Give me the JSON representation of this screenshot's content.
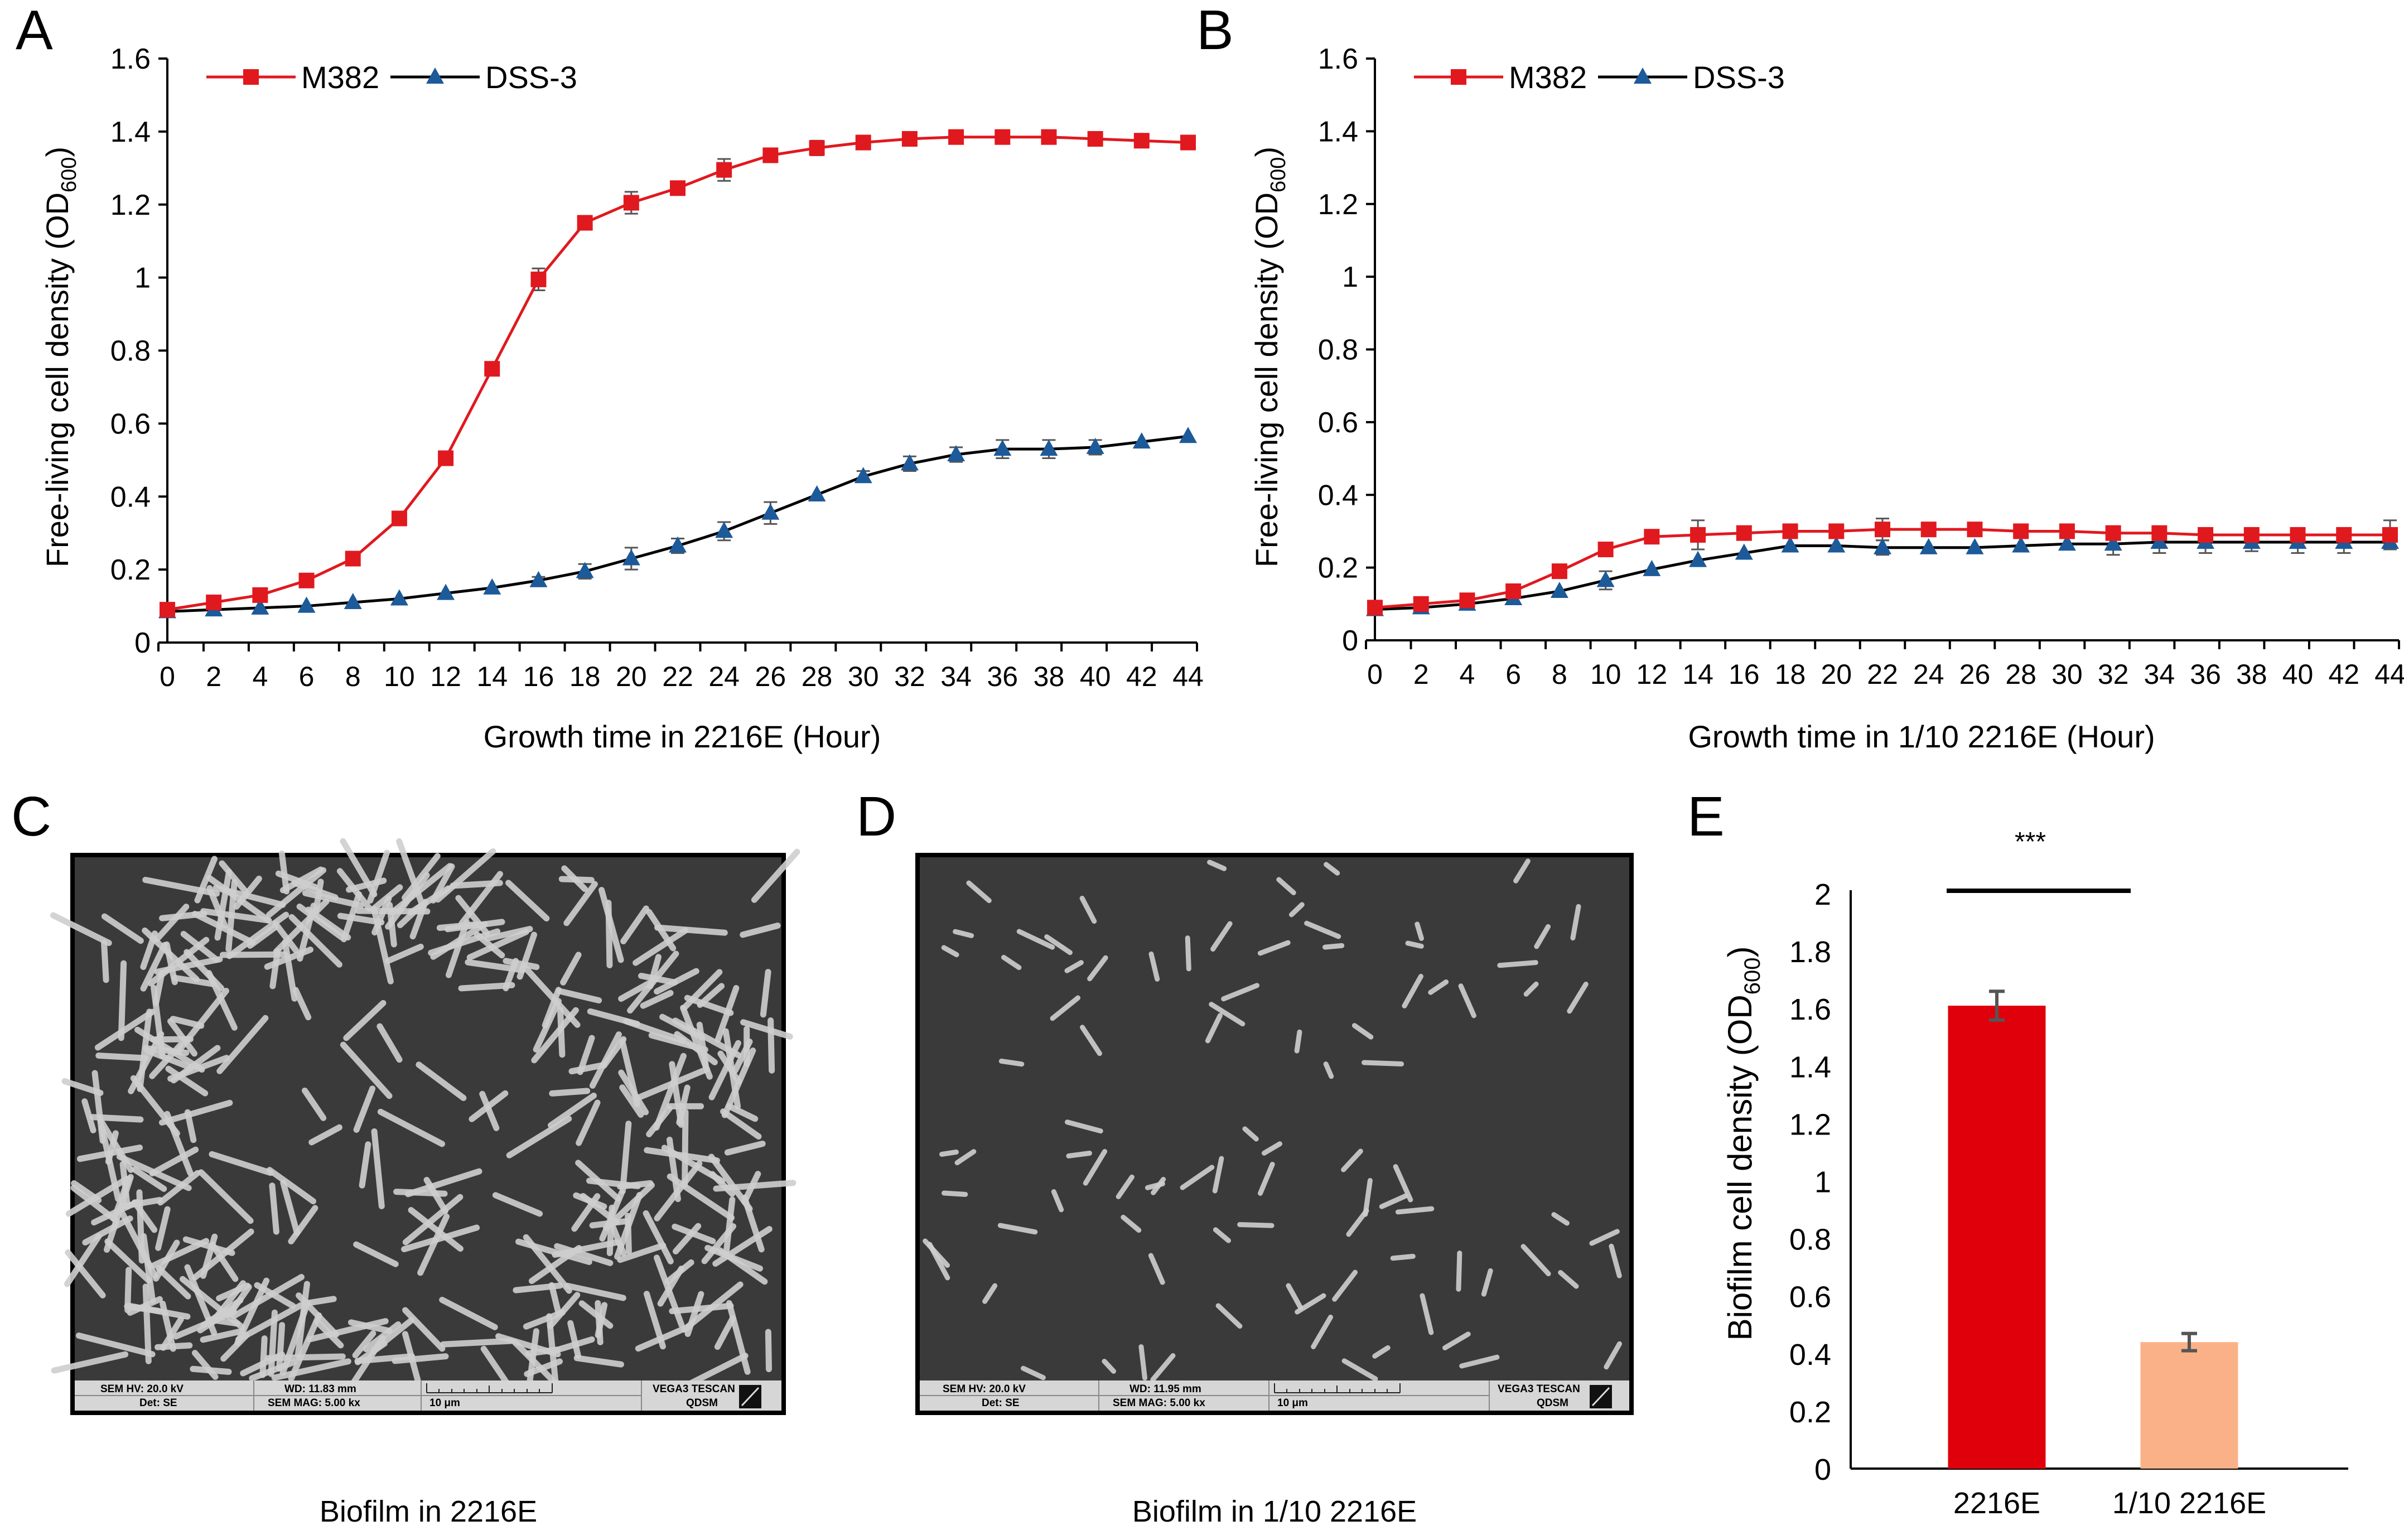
{
  "chart_data": [
    {
      "panel": "A",
      "type": "line",
      "title": "",
      "xlabel": "Growth time in 2216E (Hour)",
      "ylabel_main": "Free-living cell density (OD",
      "ylabel_sub": "600",
      "ylabel_close": ")",
      "xlim": [
        0,
        44
      ],
      "ylim": [
        0,
        1.6
      ],
      "x_ticks": [
        "0",
        "2",
        "4",
        "6",
        "8",
        "10",
        "12",
        "14",
        "16",
        "18",
        "20",
        "22",
        "24",
        "26",
        "28",
        "30",
        "32",
        "34",
        "36",
        "38",
        "40",
        "42",
        "44"
      ],
      "y_ticks": [
        "0",
        "0.2",
        "0.4",
        "0.6",
        "0.8",
        "1",
        "1.2",
        "1.4",
        "1.6"
      ],
      "legend_position": "top-left",
      "x": [
        0,
        2,
        4,
        6,
        8,
        10,
        12,
        14,
        16,
        18,
        20,
        22,
        24,
        26,
        28,
        30,
        32,
        34,
        36,
        38,
        40,
        42,
        44
      ],
      "series": [
        {
          "name": "M382",
          "color": "#e0191f",
          "marker": "square",
          "values": [
            0.09,
            0.11,
            0.13,
            0.17,
            0.23,
            0.34,
            0.505,
            0.75,
            0.995,
            1.15,
            1.205,
            1.245,
            1.295,
            1.335,
            1.355,
            1.37,
            1.38,
            1.385,
            1.385,
            1.385,
            1.38,
            1.375,
            1.37
          ],
          "errors": [
            0,
            0,
            0,
            0,
            0,
            0,
            0,
            0,
            0.03,
            0,
            0.03,
            0,
            0.03,
            0,
            0.02,
            0,
            0,
            0,
            0,
            0,
            0,
            0,
            0
          ]
        },
        {
          "name": "DSS-3",
          "color": "#1d5a99",
          "marker": "triangle",
          "values": [
            0.085,
            0.09,
            0.095,
            0.1,
            0.11,
            0.12,
            0.135,
            0.15,
            0.17,
            0.195,
            0.23,
            0.265,
            0.305,
            0.355,
            0.405,
            0.455,
            0.49,
            0.515,
            0.53,
            0.53,
            0.535,
            0.55,
            0.565
          ],
          "errors": [
            0,
            0,
            0,
            0,
            0,
            0,
            0,
            0,
            0.01,
            0.02,
            0.03,
            0.02,
            0.025,
            0.03,
            0,
            0.015,
            0.02,
            0.02,
            0.025,
            0.025,
            0.02,
            0,
            0
          ]
        }
      ]
    },
    {
      "panel": "B",
      "type": "line",
      "title": "",
      "xlabel": "Growth time in 1/10 2216E (Hour)",
      "ylabel_main": "Free-living cell density (OD",
      "ylabel_sub": "600",
      "ylabel_close": ")",
      "xlim": [
        0,
        44
      ],
      "ylim": [
        0,
        1.6
      ],
      "x_ticks": [
        "0",
        "2",
        "4",
        "6",
        "8",
        "10",
        "12",
        "14",
        "16",
        "18",
        "20",
        "22",
        "24",
        "26",
        "28",
        "30",
        "32",
        "34",
        "36",
        "38",
        "40",
        "42",
        "44"
      ],
      "y_ticks": [
        "0",
        "0.2",
        "0.4",
        "0.6",
        "0.8",
        "1",
        "1.2",
        "1.4",
        "1.6"
      ],
      "legend_position": "top-left",
      "x": [
        0,
        2,
        4,
        6,
        8,
        10,
        12,
        14,
        16,
        18,
        20,
        22,
        24,
        26,
        28,
        30,
        32,
        34,
        36,
        38,
        40,
        42,
        44
      ],
      "series": [
        {
          "name": "M382",
          "color": "#e0191f",
          "marker": "square",
          "values": [
            0.09,
            0.1,
            0.11,
            0.135,
            0.19,
            0.25,
            0.285,
            0.29,
            0.295,
            0.3,
            0.3,
            0.305,
            0.305,
            0.305,
            0.3,
            0.3,
            0.295,
            0.295,
            0.29,
            0.29,
            0.29,
            0.29,
            0.29
          ],
          "errors": [
            0,
            0,
            0,
            0,
            0,
            0,
            0,
            0.04,
            0,
            0,
            0,
            0.03,
            0,
            0,
            0,
            0,
            0,
            0,
            0,
            0,
            0,
            0,
            0.04
          ]
        },
        {
          "name": "DSS-3",
          "color": "#1d5a99",
          "marker": "triangle",
          "values": [
            0.085,
            0.09,
            0.1,
            0.115,
            0.135,
            0.165,
            0.195,
            0.22,
            0.24,
            0.26,
            0.26,
            0.255,
            0.255,
            0.255,
            0.26,
            0.265,
            0.265,
            0.27,
            0.27,
            0.27,
            0.27,
            0.27,
            0.27
          ],
          "errors": [
            0,
            0,
            0,
            0,
            0,
            0.025,
            0,
            0,
            0,
            0,
            0,
            0.02,
            0,
            0,
            0,
            0,
            0.03,
            0.03,
            0.03,
            0.025,
            0.03,
            0.03,
            0.02
          ]
        }
      ]
    },
    {
      "panel": "E",
      "type": "bar",
      "title": "",
      "xlabel": "",
      "ylabel_main": "Biofilm cell density (OD",
      "ylabel_sub": "600",
      "ylabel_close": ")",
      "ylim": [
        0,
        2
      ],
      "y_ticks": [
        "0",
        "0.2",
        "0.4",
        "0.6",
        "0.8",
        "1",
        "1.2",
        "1.4",
        "1.6",
        "1.8",
        "2"
      ],
      "categories": [
        "2216E",
        "1/10 2216E"
      ],
      "values": [
        1.61,
        0.44
      ],
      "errors": [
        0.05,
        0.03
      ],
      "colors": [
        "#e0000b",
        "#fbb188"
      ],
      "significance": "***"
    }
  ],
  "panel_labels": {
    "a": "A",
    "b": "B",
    "c": "C",
    "d": "D",
    "e": "E"
  },
  "sem_images": [
    {
      "panel": "C",
      "caption": "Biofilm in 2216E",
      "info": {
        "hv": "SEM HV: 20.0 kV",
        "wd": "WD: 11.83 mm",
        "det": "Det: SE",
        "mag": "SEM MAG: 5.00 kx",
        "scale": "10 μm",
        "brand": "VEGA3 TESCAN",
        "lab": "QDSM"
      }
    },
    {
      "panel": "D",
      "caption": "Biofilm in 1/10 2216E",
      "info": {
        "hv": "SEM HV: 20.0 kV",
        "wd": "WD: 11.95 mm",
        "det": "Det: SE",
        "mag": "SEM MAG: 5.00 kx",
        "scale": "10 μm",
        "brand": "VEGA3 TESCAN",
        "lab": "QDSM"
      }
    }
  ],
  "colors": {
    "axis": "#000000",
    "sem_bg": "#3a3a3a",
    "sem_cell": "#cfcfcf",
    "error_bar": "#555555"
  }
}
